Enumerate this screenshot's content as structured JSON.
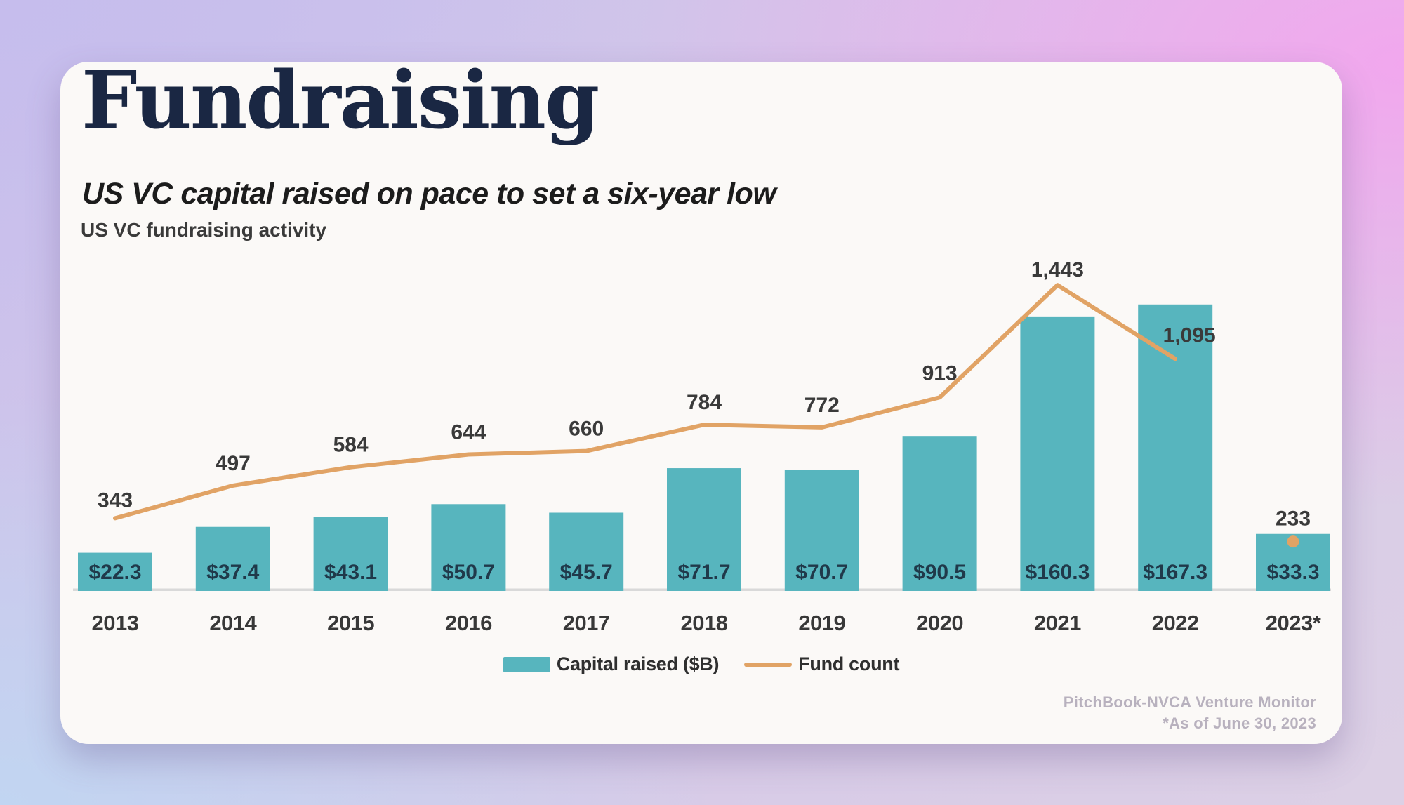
{
  "header": {
    "title": "Fundraising",
    "subtitle": "US VC capital raised on pace to set a six-year low",
    "caption": "US VC fundraising activity"
  },
  "footer": {
    "source": "PitchBook-NVCA Venture Monitor",
    "note": "*As of June 30, 2023"
  },
  "colors": {
    "bar": "#57B5BE",
    "line": "#E1A365",
    "axis": "#D9D9D9",
    "title_navy": "#1A2743",
    "bar_label": "#20394A",
    "card_background": "#FBF9F7"
  },
  "chart_data": {
    "type": "bar+line combo, dual implied axes, no gridlines",
    "title": "US VC fundraising activity",
    "categories": [
      "2013",
      "2014",
      "2015",
      "2016",
      "2017",
      "2018",
      "2019",
      "2020",
      "2021",
      "2022",
      "2023*"
    ],
    "series": [
      {
        "name": "Capital raised ($B)",
        "type": "bar",
        "color": "#57B5BE",
        "values": [
          22.3,
          37.4,
          43.1,
          50.7,
          45.7,
          71.7,
          70.7,
          90.5,
          160.3,
          167.3,
          33.3
        ],
        "labels": [
          "$22.3",
          "$37.4",
          "$43.1",
          "$50.7",
          "$45.7",
          "$71.7",
          "$70.7",
          "$90.5",
          "$160.3",
          "$167.3",
          "$33.3"
        ]
      },
      {
        "name": "Fund count",
        "type": "line",
        "color": "#E1A365",
        "values": [
          343,
          497,
          584,
          644,
          660,
          784,
          772,
          913,
          1443,
          1095,
          233
        ],
        "labels": [
          "343",
          "497",
          "584",
          "644",
          "660",
          "784",
          "772",
          "913",
          "1,443",
          "1,095",
          "233"
        ],
        "line_end_index": 9,
        "marker_only_last": true
      }
    ],
    "legend_position": "bottom-center",
    "value_labels_visible": true,
    "baseline_value": 0
  }
}
